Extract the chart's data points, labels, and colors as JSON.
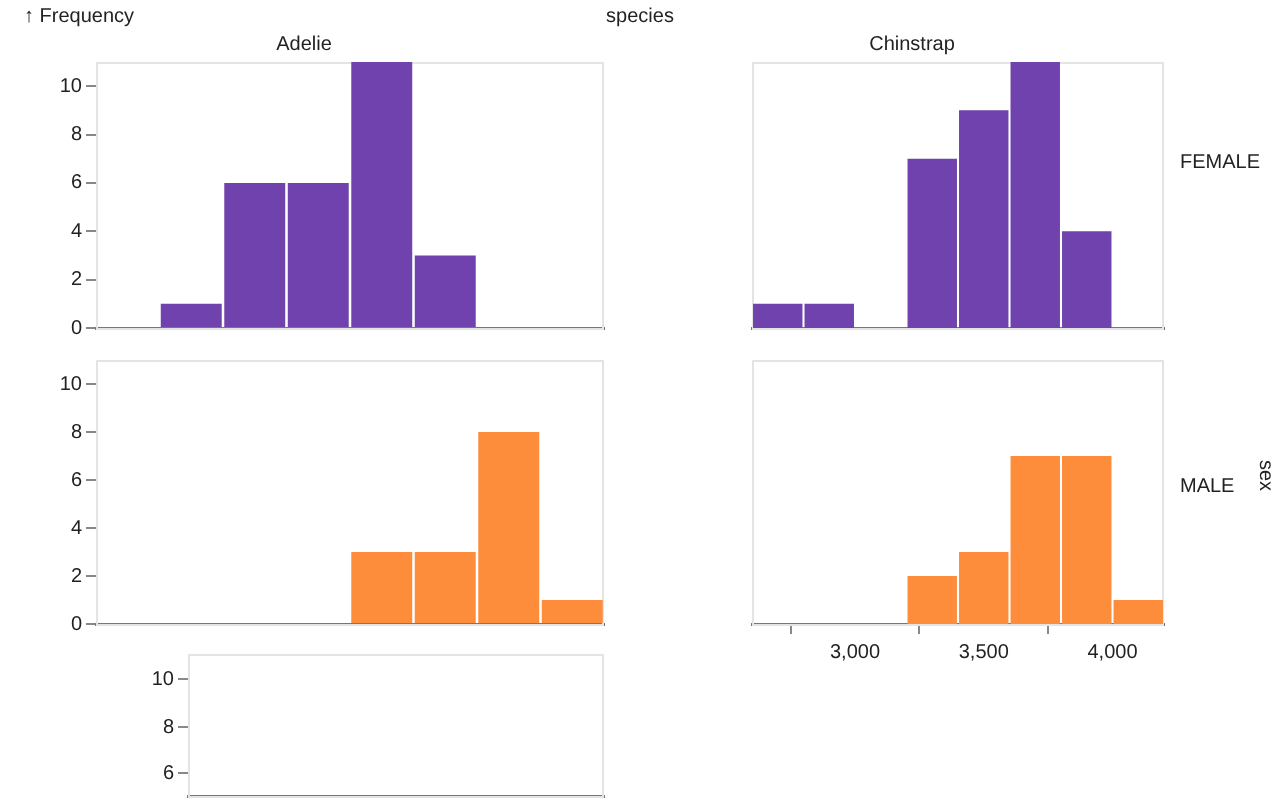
{
  "chart_data": [
    {
      "type": "bar",
      "title": "Adelie",
      "ylabel": "↑ Frequency",
      "annotations": [
        "species"
      ],
      "categories": [
        null,
        null,
        null,
        null,
        null,
        null,
        null,
        null
      ],
      "color": "#6f42ad",
      "values": [
        0,
        1,
        6,
        6,
        11,
        3,
        0,
        0
      ],
      "ylim": [
        0,
        11
      ],
      "yticks": [
        0,
        2,
        4,
        6,
        8,
        10
      ],
      "tick_labels": "y",
      "grid": false,
      "legend": false
    },
    {
      "type": "histogram",
      "title": "Chinstrap",
      "annotations": [
        "FEMALE"
      ],
      "bins": [
        2600,
        2800,
        3000,
        3200,
        3400,
        3600,
        3800,
        4000,
        4200
      ],
      "color": "#6f42ad",
      "values": [
        1,
        1,
        null,
        7,
        9,
        11,
        4,
        null
      ],
      "xlim": [
        2600,
        4200
      ],
      "ylim": [
        0,
        11
      ],
      "tick_labels": false,
      "grid": false,
      "legend": false
    },
    {
      "type": "bar",
      "categories": [
        null,
        null,
        null,
        null,
        null,
        null,
        null,
        null
      ],
      "color": "#fd8c3b",
      "values": [
        0,
        0,
        0,
        0,
        3,
        3,
        8,
        1
      ],
      "ylim": [
        0,
        11
      ],
      "yticks": [
        0,
        2,
        4,
        6,
        8,
        10
      ],
      "tick_labels": "y",
      "grid": false,
      "legend": false
    },
    {
      "type": "histogram",
      "annotations": [
        "MALE",
        "sex"
      ],
      "bins": [
        2600,
        2800,
        3000,
        3200,
        3400,
        3600,
        3800,
        4000,
        4200
      ],
      "color": "#fd8c3b",
      "values": [
        null,
        null,
        null,
        2,
        3,
        7,
        7,
        1
      ],
      "xlim": [
        2600,
        4200
      ],
      "xticks": [
        {
          "value": 3000,
          "label": "3,000"
        },
        {
          "value": 3500,
          "label": "3,500"
        },
        {
          "value": 4000,
          "label": "4,000"
        }
      ],
      "ylim": [
        0,
        11
      ],
      "tick_labels": "x",
      "grid": false,
      "legend": false
    },
    {
      "type": "other",
      "annotations": [
        "10",
        "8",
        "6"
      ]
    }
  ]
}
